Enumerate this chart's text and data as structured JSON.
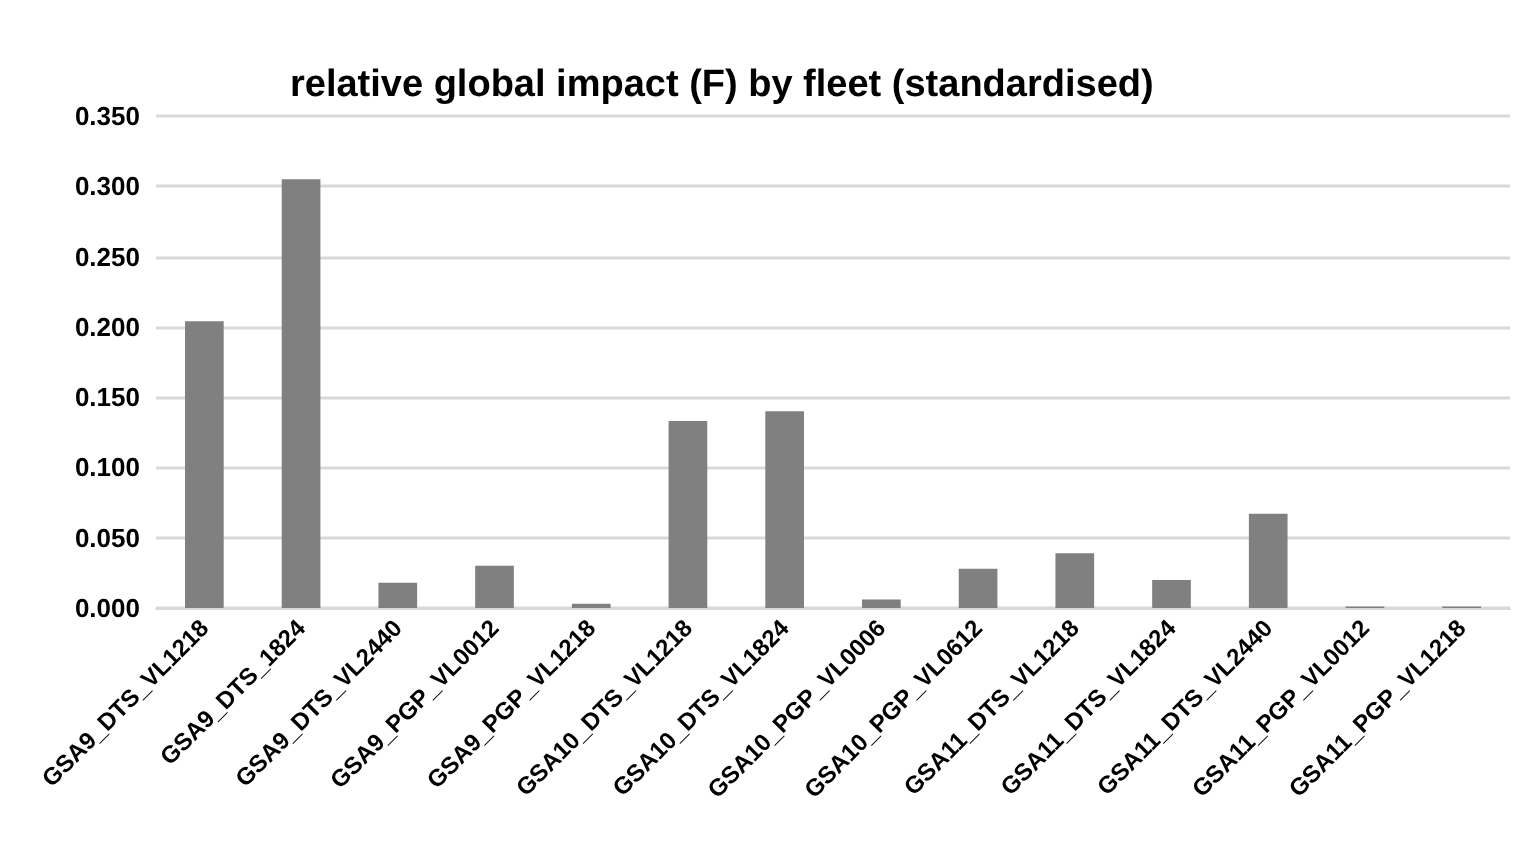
{
  "chart_data": {
    "type": "bar",
    "title": "relative global impact (F) by fleet (standardised)",
    "categories": [
      "GSA9_DTS_VL1218",
      "GSA9_DTS_1824",
      "GSA9_DTS_VL2440",
      "GSA9_PGP_VL0012",
      "GSA9_PGP_VL1218",
      "GSA10_DTS_VL1218",
      "GSA10_DTS_VL1824",
      "GSA10_PGP_VL0006",
      "GSA10_PGP_VL0612",
      "GSA11_DTS_VL1218",
      "GSA11_DTS_VL1824",
      "GSA11_DTS_VL2440",
      "GSA11_PGP_VL0012",
      "GSA11_PGP_VL1218"
    ],
    "values": [
      0.204,
      0.305,
      0.018,
      0.03,
      0.003,
      0.133,
      0.14,
      0.006,
      0.028,
      0.039,
      0.02,
      0.067,
      0.001,
      0.001
    ],
    "color": "#808080",
    "ylim": [
      0,
      0.35
    ],
    "yticks": [
      {
        "value": 0,
        "label": "0.000"
      },
      {
        "value": 0.05,
        "label": "0.050"
      },
      {
        "value": 0.1,
        "label": "0.100"
      },
      {
        "value": 0.15,
        "label": "0.150"
      },
      {
        "value": 0.2,
        "label": "0.200"
      },
      {
        "value": 0.25,
        "label": "0.250"
      },
      {
        "value": 0.3,
        "label": "0.300"
      },
      {
        "value": 0.35,
        "label": "0.350"
      }
    ],
    "grid": "y"
  }
}
